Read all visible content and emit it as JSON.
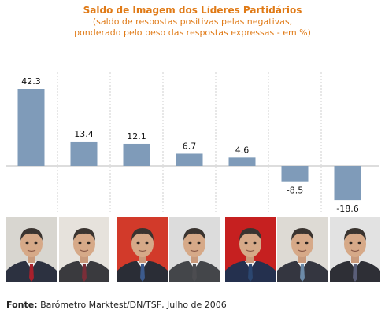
{
  "header": {
    "title": "Saldo de Imagem dos Líderes Partidários",
    "subtitle_line1": "(saldo de respostas positivas pelas negativas,",
    "subtitle_line2": "ponderado pelo peso das respostas expressas - em %)"
  },
  "chart_data": {
    "type": "bar",
    "values": [
      42.3,
      13.4,
      12.1,
      6.7,
      4.6,
      -8.5,
      -18.6
    ],
    "labels": [
      "42.3",
      "13.4",
      "12.1",
      "6.7",
      "4.6",
      "-8.5",
      "-18.6"
    ],
    "ylim": [
      -18.6,
      42.3
    ],
    "grid": "vertical dashed separators between bars",
    "bar_color": "#7f9bb9",
    "zero_line_color": "#bbbbbb"
  },
  "portraits": [
    {
      "icon": "portrait-photo",
      "bg": "#d8d6d0",
      "suit": "#2c3140",
      "tie": "#a8202c"
    },
    {
      "icon": "portrait-photo",
      "bg": "#e6e2dc",
      "suit": "#3a3a3e",
      "tie": "#7a2e38"
    },
    {
      "icon": "portrait-photo",
      "bg": "#d23a2a",
      "suit": "#2a2d36",
      "tie": "#3c5a8c"
    },
    {
      "icon": "portrait-photo",
      "bg": "#dcdcdc",
      "suit": "#44464a",
      "tie": "#4c4c50"
    },
    {
      "icon": "portrait-photo",
      "bg": "#c62020",
      "suit": "#24304e",
      "tie": "#2b4670"
    },
    {
      "icon": "portrait-photo",
      "bg": "#dddad4",
      "suit": "#343640",
      "tie": "#6c8aa8"
    },
    {
      "icon": "portrait-photo",
      "bg": "#e2e2e2",
      "suit": "#2e2f36",
      "tie": "#5a5e78"
    }
  ],
  "footer": {
    "source_label": "Fonte:",
    "source_text": "Barómetro Marktest/DN/TSF, Julho de 2006"
  }
}
